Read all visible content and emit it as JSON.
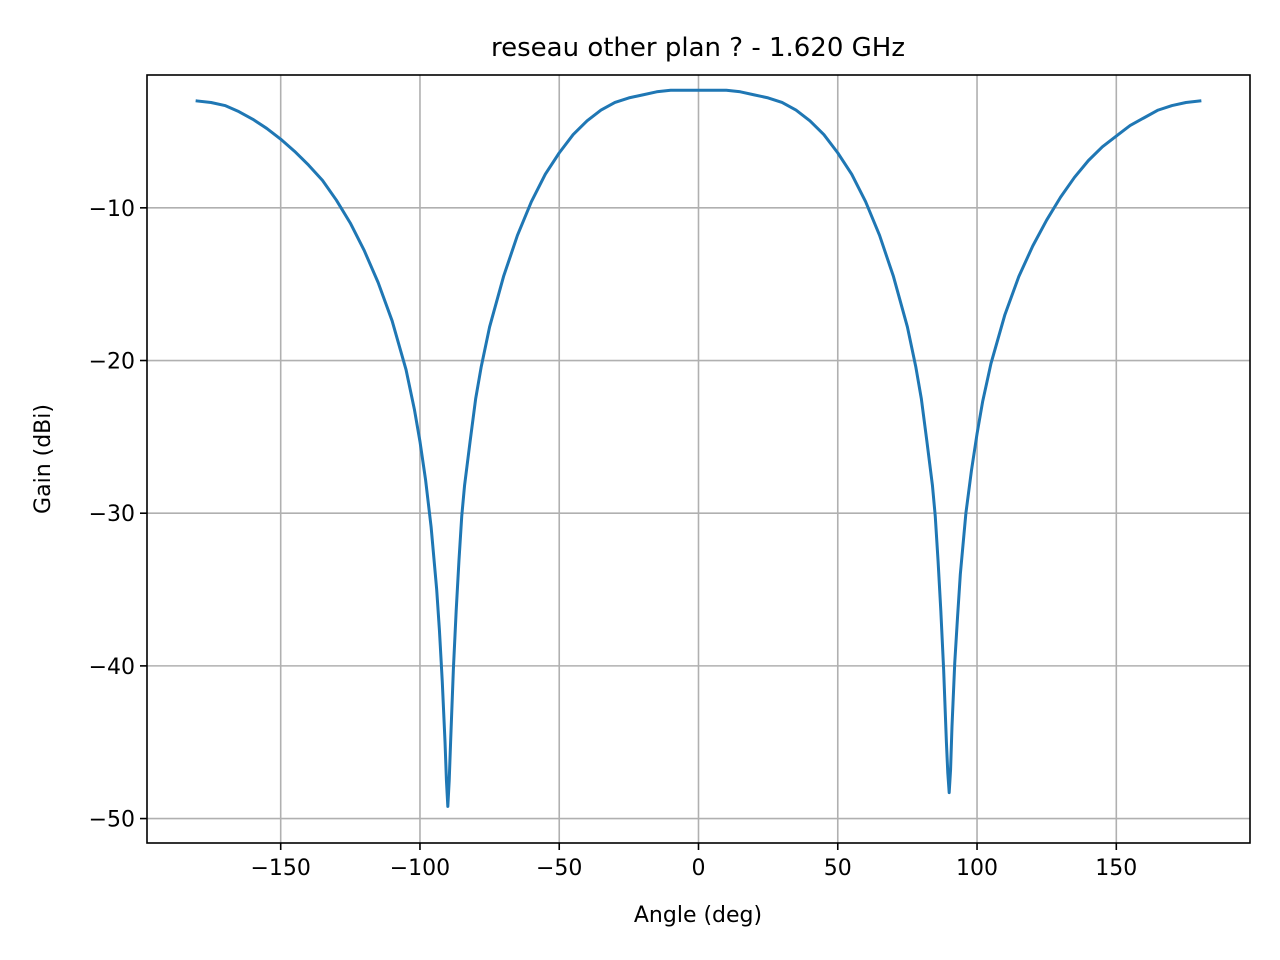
{
  "chart_data": {
    "type": "line",
    "title": "reseau other plan ? - 1.620 GHz",
    "xlabel": "Angle (deg)",
    "ylabel": "Gain (dBi)",
    "xlim": [
      -198,
      198
    ],
    "ylim": [
      -51.6,
      -1.3
    ],
    "xticks": [
      -150,
      -100,
      -50,
      0,
      50,
      100,
      150
    ],
    "yticks": [
      -10,
      -20,
      -30,
      -40,
      -50
    ],
    "xtick_labels": [
      "−150",
      "−100",
      "−50",
      "0",
      "50",
      "100",
      "150"
    ],
    "ytick_labels": [
      "−10",
      "−20",
      "−30",
      "−40",
      "−50"
    ],
    "grid": true,
    "series": [
      {
        "color": "#1f77b4",
        "x": [
          -180,
          -175,
          -170,
          -165,
          -160,
          -155,
          -150,
          -145,
          -140,
          -135,
          -130,
          -125,
          -120,
          -115,
          -110,
          -105,
          -102,
          -100,
          -98,
          -96,
          -94,
          -93,
          -92,
          -91,
          -90.5,
          -90,
          -89.5,
          -89,
          -88,
          -87,
          -86,
          -85,
          -84,
          -82,
          -80,
          -78,
          -75,
          -70,
          -65,
          -60,
          -55,
          -50,
          -45,
          -40,
          -35,
          -30,
          -25,
          -20,
          -15,
          -10,
          -5,
          0,
          5,
          10,
          15,
          20,
          25,
          30,
          35,
          40,
          45,
          50,
          55,
          60,
          65,
          70,
          75,
          78,
          80,
          82,
          84,
          85,
          86,
          87,
          88,
          89,
          89.5,
          90,
          90.5,
          91,
          92,
          93,
          94,
          96,
          98,
          100,
          102,
          105,
          110,
          115,
          120,
          125,
          130,
          135,
          140,
          145,
          150,
          155,
          160,
          165,
          170,
          175,
          180
        ],
        "y": [
          -3.0,
          -3.1,
          -3.3,
          -3.7,
          -4.2,
          -4.8,
          -5.5,
          -6.3,
          -7.2,
          -8.2,
          -9.5,
          -11.0,
          -12.8,
          -14.9,
          -17.4,
          -20.6,
          -23.2,
          -25.3,
          -27.8,
          -30.9,
          -35.0,
          -37.7,
          -41.0,
          -45.0,
          -47.5,
          -49.2,
          -47.5,
          -45.0,
          -40.2,
          -36.4,
          -33.1,
          -30.2,
          -28.2,
          -25.3,
          -22.5,
          -20.4,
          -17.8,
          -14.5,
          -11.8,
          -9.6,
          -7.8,
          -6.4,
          -5.2,
          -4.3,
          -3.6,
          -3.1,
          -2.8,
          -2.6,
          -2.4,
          -2.3,
          -2.3,
          -2.3,
          -2.3,
          -2.3,
          -2.4,
          -2.6,
          -2.8,
          -3.1,
          -3.6,
          -4.3,
          -5.2,
          -6.4,
          -7.8,
          -9.6,
          -11.8,
          -14.5,
          -17.8,
          -20.4,
          -22.5,
          -25.3,
          -28.2,
          -30.2,
          -33.1,
          -36.4,
          -40.2,
          -45.0,
          -47.0,
          -48.3,
          -46.8,
          -44.0,
          -39.8,
          -36.8,
          -34.0,
          -30.0,
          -27.2,
          -24.8,
          -22.7,
          -20.2,
          -17.0,
          -14.5,
          -12.5,
          -10.8,
          -9.3,
          -8.0,
          -6.9,
          -6.0,
          -5.3,
          -4.6,
          -4.1,
          -3.6,
          -3.3,
          -3.1,
          -3.0
        ]
      }
    ]
  }
}
